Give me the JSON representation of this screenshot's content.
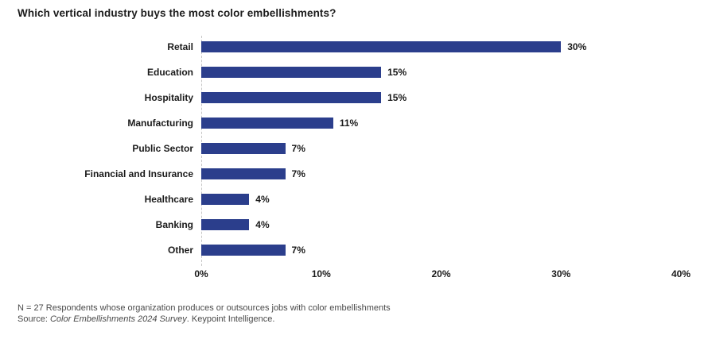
{
  "title": "Which vertical industry buys the most color embellishments?",
  "colors": {
    "bar": "#2b3e8c",
    "zero_line": "#c6c6c6",
    "title_text": "#1c1c1c",
    "label_text": "#1a1a1a",
    "footer_text": "#4a4a4a",
    "background": "#ffffff"
  },
  "chart_data": {
    "type": "bar",
    "orientation": "horizontal",
    "title": "Which vertical industry buys the most color embellishments?",
    "categories": [
      "Retail",
      "Education",
      "Hospitality",
      "Manufacturing",
      "Public Sector",
      "Financial and Insurance",
      "Healthcare",
      "Banking",
      "Other"
    ],
    "values": [
      30,
      15,
      15,
      11,
      7,
      7,
      4,
      4,
      7
    ],
    "value_labels": [
      "30%",
      "15%",
      "15%",
      "11%",
      "7%",
      "7%",
      "4%",
      "4%",
      "7%"
    ],
    "xlabel": "",
    "ylabel": "",
    "xlim": [
      0,
      40
    ],
    "x_tick_values": [
      0,
      10,
      20,
      30,
      40
    ],
    "x_tick_labels": [
      "0%",
      "10%",
      "20%",
      "30%",
      "40%"
    ],
    "grid": "zero-axis-dashed-line-only",
    "legend": "none"
  },
  "footer": {
    "line1": "N = 27 Respondents whose organization produces or outsources jobs with color embellishments",
    "line2_prefix": "Source: ",
    "line2_italic": "Color Embellishments 2024 Survey",
    "line2_suffix": ". Keypoint Intelligence."
  }
}
